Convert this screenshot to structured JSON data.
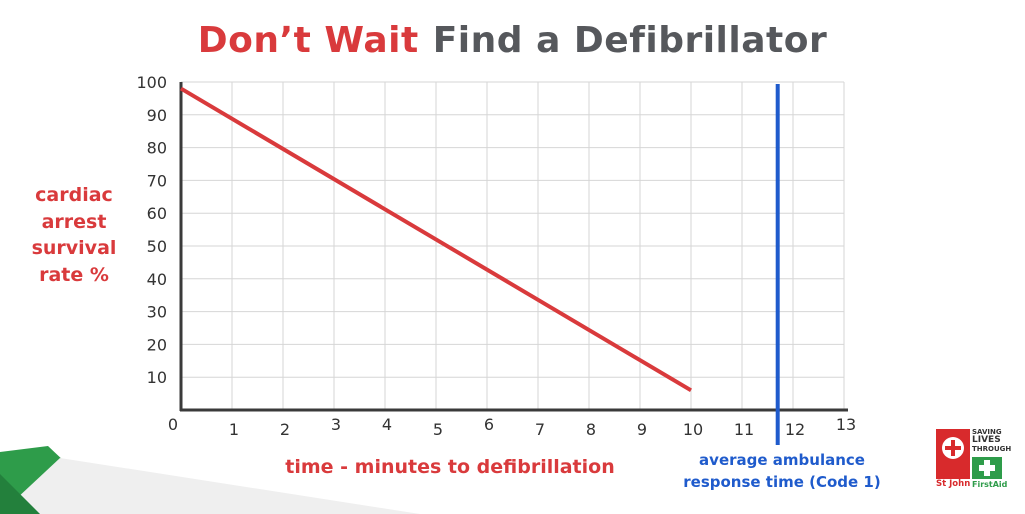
{
  "title": {
    "part1": "Don’t Wait",
    "part2": "Find a Defibrillator"
  },
  "colors": {
    "accent_red": "#d93a3c",
    "title_grey": "#56585c",
    "reference_blue": "#1f5bcc",
    "grid": "#d6d6d6",
    "green": "#2e9c4a"
  },
  "chart_data": {
    "type": "line",
    "title": "Don’t Wait  Find a Defibrillator",
    "xlabel": "time - minutes to defibrillation",
    "ylabel": "cardiac arrest survival rate %",
    "ylabel_lines": [
      "cardiac",
      "arrest",
      "survival",
      "rate %"
    ],
    "xlim": [
      0,
      13
    ],
    "ylim": [
      0,
      100
    ],
    "x_ticks": [
      0,
      1,
      2,
      3,
      4,
      5,
      6,
      7,
      8,
      9,
      10,
      11,
      12,
      13
    ],
    "y_ticks": [
      10,
      20,
      30,
      40,
      50,
      60,
      70,
      80,
      90,
      100
    ],
    "grid": true,
    "series": [
      {
        "name": "",
        "color": "#d93a3c",
        "x": [
          0,
          10
        ],
        "y": [
          98,
          6
        ]
      }
    ],
    "reference_line": {
      "x": 11.7,
      "color": "#1f5bcc",
      "label_lines": [
        "average ambulance",
        "response time (Code 1)"
      ]
    }
  },
  "logo": {
    "name": "St John",
    "line1": "SAVING",
    "line2": "LIVES",
    "line3": "THROUGH",
    "line4": "FirstAid"
  }
}
